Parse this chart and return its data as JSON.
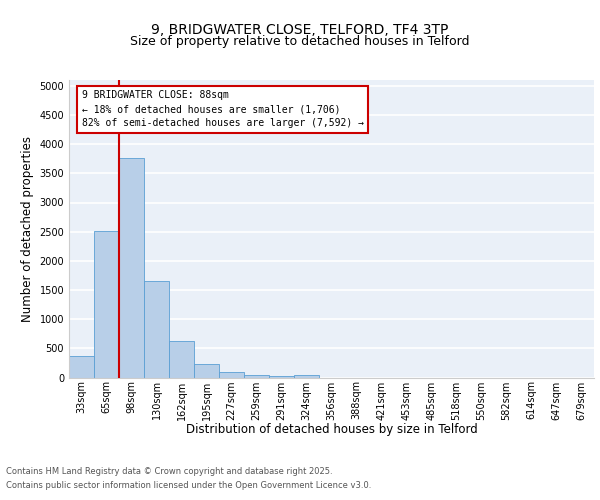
{
  "title_line1": "9, BRIDGWATER CLOSE, TELFORD, TF4 3TP",
  "title_line2": "Size of property relative to detached houses in Telford",
  "xlabel": "Distribution of detached houses by size in Telford",
  "ylabel": "Number of detached properties",
  "categories": [
    "33sqm",
    "65sqm",
    "98sqm",
    "130sqm",
    "162sqm",
    "195sqm",
    "227sqm",
    "259sqm",
    "291sqm",
    "324sqm",
    "356sqm",
    "388sqm",
    "421sqm",
    "453sqm",
    "485sqm",
    "518sqm",
    "550sqm",
    "582sqm",
    "614sqm",
    "647sqm",
    "679sqm"
  ],
  "values": [
    370,
    2520,
    3760,
    1650,
    620,
    230,
    100,
    45,
    30,
    45,
    0,
    0,
    0,
    0,
    0,
    0,
    0,
    0,
    0,
    0,
    0
  ],
  "bar_color": "#b8cfe8",
  "bar_edge_color": "#5a9fd4",
  "background_color": "#eaf0f8",
  "grid_color": "#ffffff",
  "ylim": [
    0,
    5100
  ],
  "yticks": [
    0,
    500,
    1000,
    1500,
    2000,
    2500,
    3000,
    3500,
    4000,
    4500,
    5000
  ],
  "vline_color": "#cc0000",
  "vline_x_index": 1.5,
  "annotation_text": "9 BRIDGWATER CLOSE: 88sqm\n← 18% of detached houses are smaller (1,706)\n82% of semi-detached houses are larger (7,592) →",
  "annotation_box_color": "#cc0000",
  "footer_line1": "Contains HM Land Registry data © Crown copyright and database right 2025.",
  "footer_line2": "Contains public sector information licensed under the Open Government Licence v3.0.",
  "title_fontsize": 10,
  "subtitle_fontsize": 9,
  "tick_fontsize": 7,
  "label_fontsize": 8.5,
  "ann_fontsize": 7
}
